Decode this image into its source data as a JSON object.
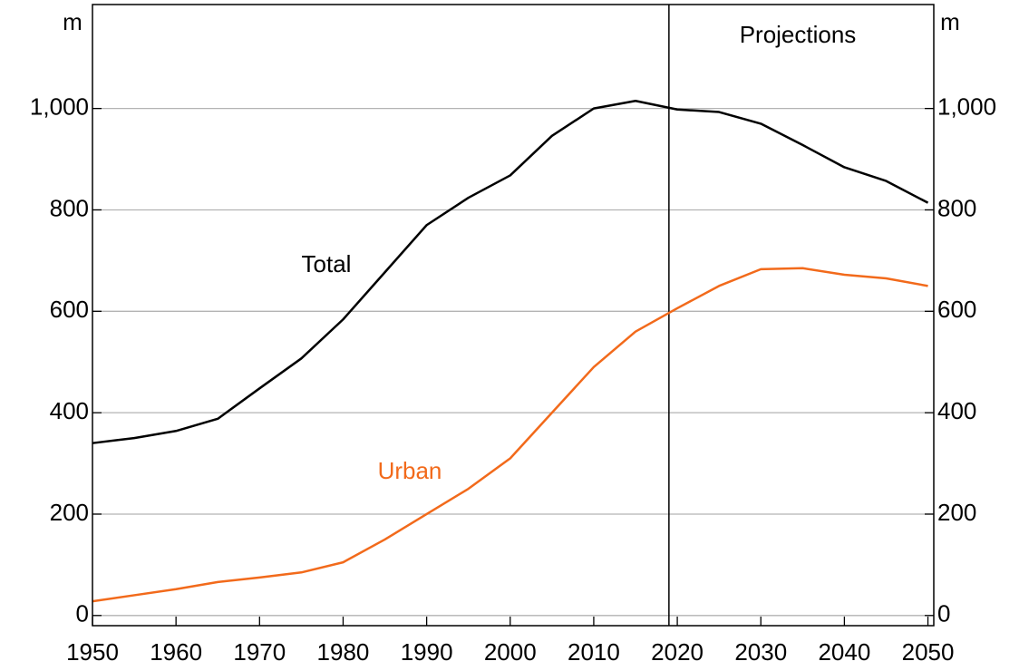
{
  "chart_data": {
    "type": "line",
    "y_label": "m",
    "y2_label": "m",
    "annotation": "Projections",
    "projection_start": 2019,
    "x": [
      1950,
      1955,
      1960,
      1965,
      1970,
      1975,
      1980,
      1985,
      1990,
      1995,
      2000,
      2005,
      2010,
      2015,
      2020,
      2025,
      2030,
      2035,
      2040,
      2045,
      2050
    ],
    "series": [
      {
        "name": "Total",
        "color": "#000000",
        "values": [
          340,
          350,
          364,
          388,
          448,
          507,
          584,
          677,
          770,
          824,
          868,
          946,
          1000,
          1015,
          998,
          993,
          970,
          928,
          884,
          857,
          814
        ]
      },
      {
        "name": "Urban",
        "color": "#f26a1b",
        "values": [
          28,
          40,
          52,
          66,
          75,
          85,
          105,
          150,
          200,
          250,
          310,
          400,
          490,
          560,
          606,
          650,
          683,
          685,
          672,
          665,
          650
        ]
      }
    ],
    "xlim": [
      1950,
      2050.7
    ],
    "ylim": [
      -20,
      1205
    ],
    "xticks": [
      1950,
      1960,
      1970,
      1980,
      1990,
      2000,
      2010,
      2020,
      2030,
      2040,
      2050
    ],
    "yticks": [
      0,
      200,
      400,
      600,
      800,
      {
        "value": 1000,
        "label": "1,000"
      }
    ],
    "grid": true
  }
}
